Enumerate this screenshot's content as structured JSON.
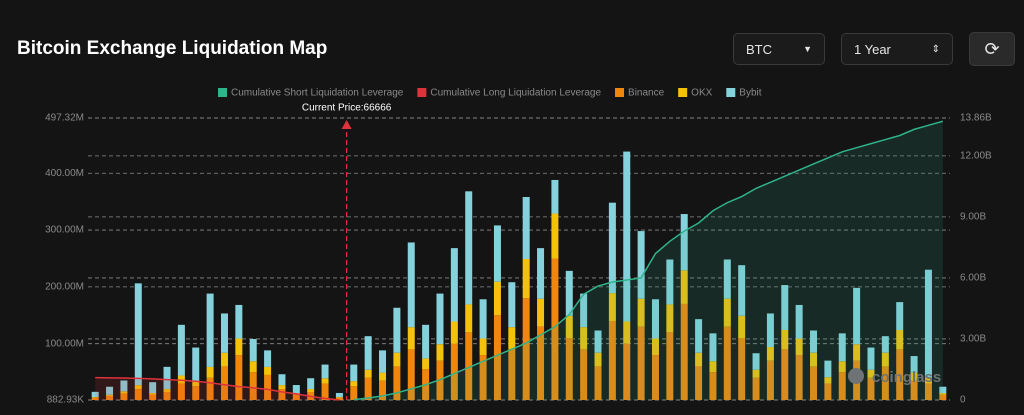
{
  "header": {
    "symbol": "BTC",
    "range": "1 Year"
  },
  "watermark": "coinglass",
  "chart_data": {
    "type": "bar",
    "stacked": true,
    "title": "Bitcoin Exchange Liquidation Map",
    "annotation": "Current Price:66666",
    "ylim": [
      882930,
      497320000
    ],
    "yticks": [
      {
        "value": 882930,
        "label": "882.93K"
      },
      {
        "value": 100000000,
        "label": "100.00M"
      },
      {
        "value": 200000000,
        "label": "200.00M"
      },
      {
        "value": 300000000,
        "label": "300.00M"
      },
      {
        "value": 400000000,
        "label": "400.00M"
      },
      {
        "value": 497320000,
        "label": "497.32M"
      }
    ],
    "y2lim": [
      0,
      13860000000
    ],
    "y2ticks": [
      0,
      {
        "value": 3000000000,
        "label": "3.00B"
      },
      {
        "value": 6000000000,
        "label": "6.00B"
      },
      {
        "value": 9000000000,
        "label": "9.00B"
      },
      {
        "value": 12000000000,
        "label": "12.00B"
      },
      {
        "value": 13860000000,
        "label": "13.86B"
      }
    ],
    "grid": true,
    "series": [
      {
        "name": "Cumulative Short Liquidation Leverage",
        "type": "line",
        "axis": "y2",
        "color": "#2fb38b",
        "values": [
          null,
          null,
          null,
          null,
          null,
          null,
          null,
          null,
          null,
          null,
          null,
          null,
          null,
          null,
          null,
          null,
          null,
          null,
          20000000.0,
          100000000.0,
          200000000.0,
          350000000.0,
          550000000.0,
          750000000.0,
          1000000000.0,
          1300000000.0,
          1600000000.0,
          1900000000.0,
          2200000000.0,
          2500000000.0,
          2800000000.0,
          3200000000.0,
          3600000000.0,
          4200000000.0,
          5200000000.0,
          5600000000.0,
          5800000000.0,
          5900000000.0,
          6000000000.0,
          7200000000.0,
          7800000000.0,
          8300000000.0,
          8700000000.0,
          9300000000.0,
          9700000000.0,
          10000000000.0,
          10400000000.0,
          10700000000.0,
          11000000000.0,
          11300000000.0,
          11600000000.0,
          11900000000.0,
          12200000000.0,
          12400000000.0,
          12600000000.0,
          12800000000.0,
          13000000000.0,
          13300000000.0,
          13500000000.0,
          13700000000.0
        ]
      },
      {
        "name": "Cumulative Long Liquidation Leverage",
        "type": "line",
        "axis": "y2",
        "color": "#e0323c",
        "values": [
          1100000000.0,
          1090000000.0,
          1080000000.0,
          1060000000.0,
          1040000000.0,
          1000000000.0,
          970000000.0,
          920000000.0,
          850000000.0,
          750000000.0,
          660000000.0,
          600000000.0,
          520000000.0,
          400000000.0,
          300000000.0,
          180000000.0,
          80000000.0,
          0,
          null,
          null,
          null,
          null,
          null,
          null,
          null,
          null,
          null,
          null,
          null,
          null,
          null,
          null,
          null,
          null,
          null,
          null,
          null,
          null,
          null,
          null,
          null,
          null,
          null,
          null,
          null,
          null,
          null,
          null,
          null,
          null,
          null,
          null,
          null,
          null,
          null,
          null,
          null,
          null,
          null,
          null
        ]
      },
      {
        "name": "Binance",
        "color": "#f0870c",
        "values": [
          5000000.0,
          8000000.0,
          12000000.0,
          20000000.0,
          10000000.0,
          15000000.0,
          30000000.0,
          25000000.0,
          40000000.0,
          60000000.0,
          80000000.0,
          50000000.0,
          45000000.0,
          20000000.0,
          10000000.0,
          15000000.0,
          30000000.0,
          5000000.0,
          25000000.0,
          40000000.0,
          35000000.0,
          60000000.0,
          90000000.0,
          55000000.0,
          70000000.0,
          100000000.0,
          120000000.0,
          80000000.0,
          150000000.0,
          90000000.0,
          180000000.0,
          130000000.0,
          250000000.0,
          110000000.0,
          90000000.0,
          60000000.0,
          140000000.0,
          100000000.0,
          130000000.0,
          80000000.0,
          120000000.0,
          170000000.0,
          60000000.0,
          50000000.0,
          130000000.0,
          110000000.0,
          40000000.0,
          70000000.0,
          90000000.0,
          80000000.0,
          60000000.0,
          30000000.0,
          50000000.0,
          70000000.0,
          40000000.0,
          60000000.0,
          90000000.0,
          35000000.0,
          30000000.0,
          10000000.0
        ]
      },
      {
        "name": "OKX",
        "color": "#f4c20d",
        "values": [
          2000000.0,
          3000000.0,
          5000000.0,
          8000000.0,
          4000000.0,
          6000000.0,
          15000000.0,
          10000000.0,
          20000000.0,
          25000000.0,
          30000000.0,
          20000000.0,
          15000000.0,
          8000000.0,
          4000000.0,
          6000000.0,
          10000000.0,
          2000000.0,
          10000000.0,
          15000000.0,
          15000000.0,
          25000000.0,
          40000000.0,
          20000000.0,
          30000000.0,
          40000000.0,
          50000000.0,
          30000000.0,
          60000000.0,
          40000000.0,
          70000000.0,
          50000000.0,
          80000000.0,
          40000000.0,
          40000000.0,
          25000000.0,
          50000000.0,
          40000000.0,
          50000000.0,
          30000000.0,
          50000000.0,
          60000000.0,
          25000000.0,
          20000000.0,
          50000000.0,
          40000000.0,
          15000000.0,
          25000000.0,
          35000000.0,
          30000000.0,
          25000000.0,
          12000000.0,
          20000000.0,
          30000000.0,
          15000000.0,
          25000000.0,
          35000000.0,
          15000000.0,
          12000000.0,
          4000000.0
        ]
      },
      {
        "name": "Bybit",
        "color": "#86d2dc",
        "values": [
          10000000.0,
          15000000.0,
          20000000.0,
          180000000.0,
          20000000.0,
          40000000.0,
          90000000.0,
          60000000.0,
          130000000.0,
          70000000.0,
          60000000.0,
          40000000.0,
          30000000.0,
          20000000.0,
          15000000.0,
          20000000.0,
          25000000.0,
          8000000.0,
          30000000.0,
          60000000.0,
          40000000.0,
          80000000.0,
          150000000.0,
          60000000.0,
          90000000.0,
          130000000.0,
          200000000.0,
          70000000.0,
          100000000.0,
          80000000.0,
          110000000.0,
          90000000.0,
          60000000.0,
          80000000.0,
          60000000.0,
          40000000.0,
          160000000.0,
          300000000.0,
          120000000.0,
          70000000.0,
          80000000.0,
          100000000.0,
          60000000.0,
          50000000.0,
          70000000.0,
          90000000.0,
          30000000.0,
          60000000.0,
          80000000.0,
          60000000.0,
          40000000.0,
          30000000.0,
          50000000.0,
          100000000.0,
          40000000.0,
          30000000.0,
          50000000.0,
          30000000.0,
          190000000.0,
          12000000.0
        ]
      }
    ]
  }
}
